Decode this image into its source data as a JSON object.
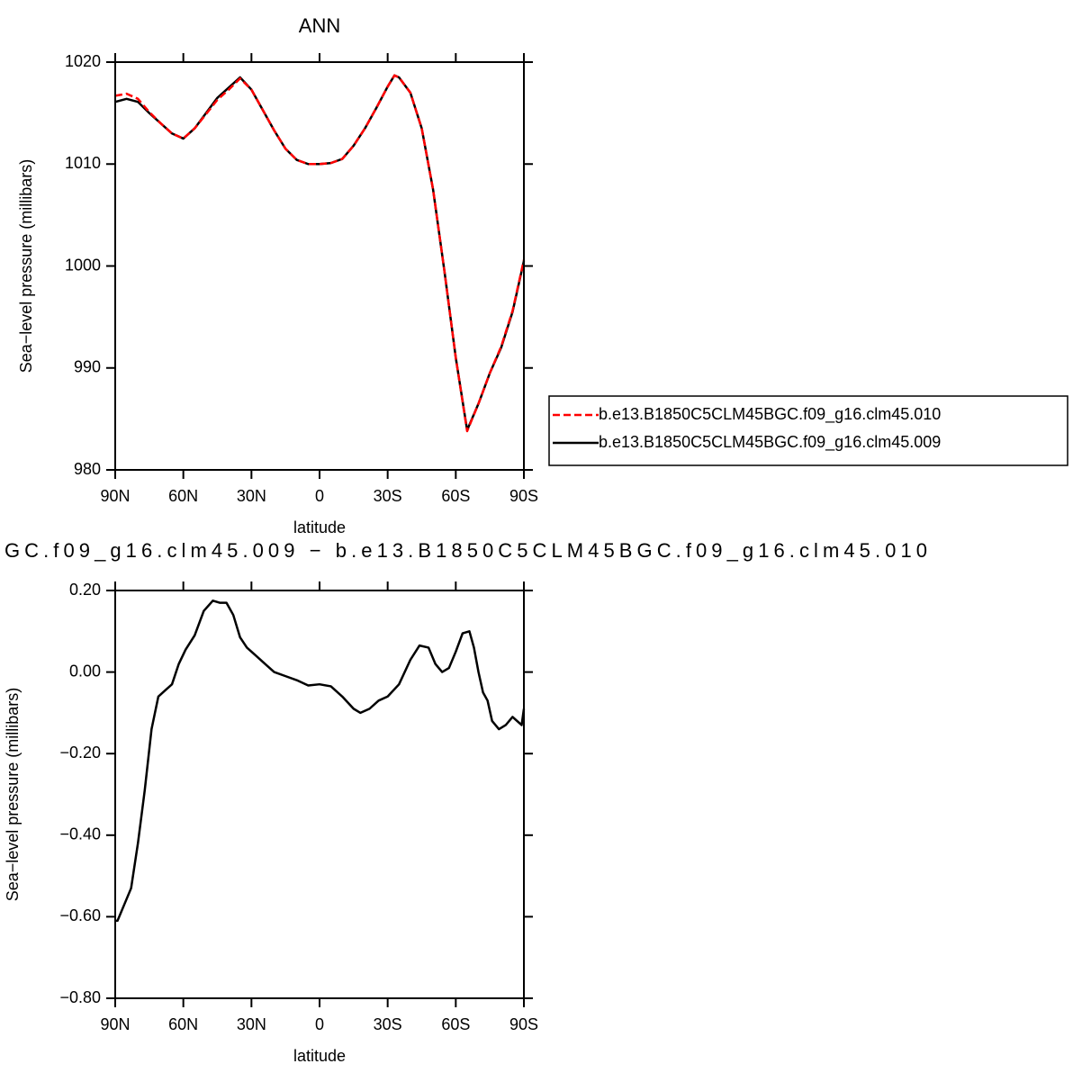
{
  "chart_data": [
    {
      "type": "line",
      "title": "ANN",
      "xlabel": "latitude",
      "ylabel": "Sea−level pressure (millibars)",
      "x": [
        90,
        85,
        80,
        75,
        70,
        65,
        60,
        55,
        50,
        45,
        40,
        35,
        30,
        25,
        20,
        15,
        10,
        5,
        0,
        -5,
        -10,
        -15,
        -20,
        -25,
        -30,
        -33,
        -35,
        -40,
        -45,
        -50,
        -55,
        -60,
        -65,
        -70,
        -75,
        -80,
        -85,
        -90
      ],
      "series": [
        {
          "name": "b.e13.B1850C5CLM45BGC.f09_g16.clm45.010",
          "color": "#ff0000",
          "dash": "dashed",
          "values": [
            1016.7,
            1016.9,
            1016.4,
            1015.1,
            1014.0,
            1013.0,
            1012.5,
            1013.5,
            1014.9,
            1016.3,
            1017.3,
            1018.4,
            1017.3,
            1015.3,
            1013.3,
            1011.5,
            1010.4,
            1010.0,
            1010.0,
            1010.1,
            1010.5,
            1011.8,
            1013.5,
            1015.5,
            1017.6,
            1018.7,
            1018.5,
            1017.0,
            1013.5,
            1007.5,
            999.5,
            991.0,
            983.8,
            986.5,
            989.5,
            992.1,
            995.6,
            1000.6
          ]
        },
        {
          "name": "b.e13.B1850C5CLM45BGC.f09_g16.clm45.009",
          "color": "#000000",
          "dash": "solid",
          "values": [
            1016.1,
            1016.4,
            1016.1,
            1015.0,
            1014.0,
            1013.0,
            1012.5,
            1013.5,
            1015.0,
            1016.5,
            1017.5,
            1018.5,
            1017.3,
            1015.3,
            1013.3,
            1011.5,
            1010.4,
            1010.0,
            1010.0,
            1010.1,
            1010.5,
            1011.8,
            1013.5,
            1015.5,
            1017.6,
            1018.7,
            1018.5,
            1017.0,
            1013.5,
            1007.5,
            999.5,
            991.0,
            983.9,
            986.5,
            989.5,
            992.0,
            995.5,
            1000.5
          ]
        }
      ],
      "xlim": [
        90,
        -90
      ],
      "xticks": [
        {
          "value": 90,
          "label": "90N"
        },
        {
          "value": 60,
          "label": "60N"
        },
        {
          "value": 30,
          "label": "30N"
        },
        0,
        {
          "value": -30,
          "label": "30S"
        },
        {
          "value": -60,
          "label": "60S"
        },
        {
          "value": -90,
          "label": "90S"
        }
      ],
      "ylim": [
        980,
        1020
      ],
      "yticks": [
        980,
        990,
        1000,
        1010,
        1020
      ],
      "legend": "right"
    },
    {
      "type": "line",
      "title": "GC.f09_g16.clm45.009 − b.e13.B1850C5CLM45BGC.f09_g16.clm45.010",
      "xlabel": "latitude",
      "ylabel": "Sea−level pressure (millibars)",
      "x": [
        90,
        89,
        86,
        83,
        80,
        77,
        74,
        71,
        68,
        65,
        62,
        59,
        55,
        51,
        47,
        44,
        41,
        38,
        35,
        32,
        28,
        24,
        20,
        15,
        10,
        5,
        0,
        -5,
        -10,
        -15,
        -18,
        -22,
        -26,
        -30,
        -35,
        -40,
        -44,
        -48,
        -51,
        -54,
        -57,
        -60,
        -63,
        -66,
        -68,
        -70,
        -72,
        -74,
        -76,
        -79,
        -82,
        -85,
        -87,
        -89,
        -90
      ],
      "series": [
        {
          "color": "#000000",
          "dash": "solid",
          "values": [
            -0.61,
            -0.61,
            -0.57,
            -0.53,
            -0.42,
            -0.29,
            -0.14,
            -0.06,
            -0.045,
            -0.03,
            0.02,
            0.055,
            0.09,
            0.15,
            0.175,
            0.17,
            0.17,
            0.14,
            0.085,
            0.06,
            0.04,
            0.02,
            0.0,
            -0.01,
            -0.02,
            -0.033,
            -0.03,
            -0.035,
            -0.06,
            -0.09,
            -0.1,
            -0.09,
            -0.07,
            -0.06,
            -0.03,
            0.03,
            0.065,
            0.06,
            0.02,
            0.0,
            0.01,
            0.05,
            0.095,
            0.1,
            0.06,
            0.0,
            -0.05,
            -0.07,
            -0.12,
            -0.14,
            -0.13,
            -0.11,
            -0.12,
            -0.13,
            -0.09
          ]
        }
      ],
      "xlim": [
        90,
        -90
      ],
      "xticks": [
        {
          "value": 90,
          "label": "90N"
        },
        {
          "value": 60,
          "label": "60N"
        },
        {
          "value": 30,
          "label": "30N"
        },
        0,
        {
          "value": -30,
          "label": "30S"
        },
        {
          "value": -60,
          "label": "60S"
        },
        {
          "value": -90,
          "label": "90S"
        }
      ],
      "ylim": [
        -0.8,
        0.2
      ],
      "yticks": [
        {
          "value": -0.8,
          "label": "−0.80"
        },
        {
          "value": -0.6,
          "label": "−0.60"
        },
        {
          "value": -0.4,
          "label": "−0.40"
        },
        {
          "value": -0.2,
          "label": "−0.20"
        },
        {
          "value": 0,
          "label": "0.00"
        },
        {
          "value": 0.2,
          "label": "0.20"
        }
      ]
    }
  ]
}
